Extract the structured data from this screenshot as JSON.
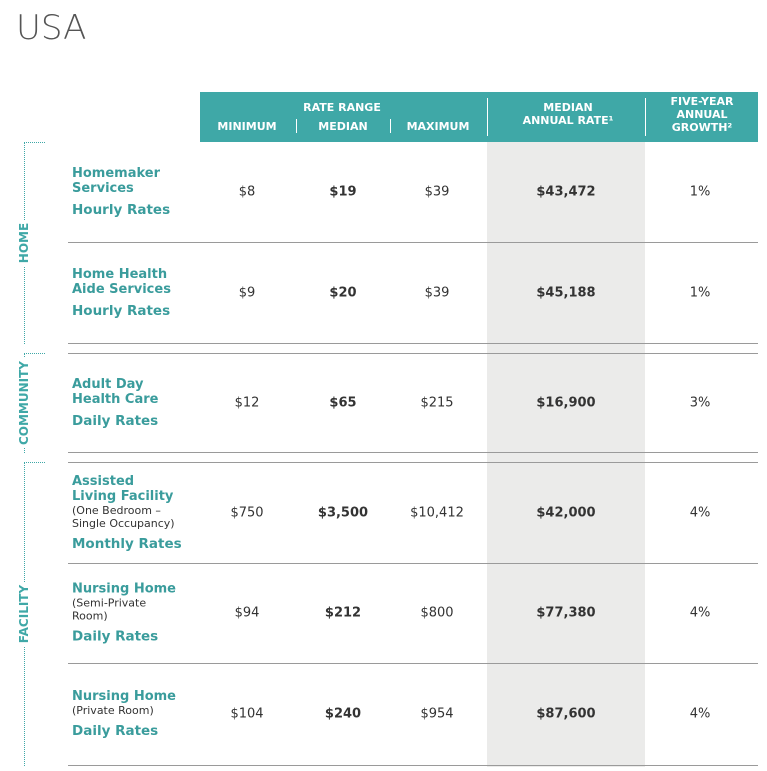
{
  "title": "USA",
  "header": {
    "rate_range": "RATE RANGE",
    "minimum": "MINIMUM",
    "median": "MEDIAN",
    "maximum": "MAXIMUM",
    "median_annual_rate": "MEDIAN ANNUAL RATE¹",
    "five_year_growth": "FIVE-YEAR ANNUAL GROWTH²"
  },
  "groups": [
    {
      "label": "HOME",
      "rows": [
        {
          "name": [
            "Homemaker",
            "Services"
          ],
          "note": [],
          "rate_type": "Hourly Rates",
          "values": [
            "$8",
            "$19",
            "$39",
            "$43,472",
            "1%"
          ]
        },
        {
          "name": [
            "Home Health",
            "Aide Services"
          ],
          "note": [],
          "rate_type": "Hourly Rates",
          "values": [
            "$9",
            "$20",
            "$39",
            "$45,188",
            "1%"
          ]
        }
      ]
    },
    {
      "label": "COMMUNITY",
      "rows": [
        {
          "name": [
            "Adult Day",
            "Health Care"
          ],
          "note": [],
          "rate_type": "Daily Rates",
          "values": [
            "$12",
            "$65",
            "$215",
            "$16,900",
            "3%"
          ]
        }
      ]
    },
    {
      "label": "FACILITY",
      "rows": [
        {
          "name": [
            "Assisted",
            "Living Facility"
          ],
          "note": [
            "(One Bedroom –",
            "Single Occupancy)"
          ],
          "rate_type": "Monthly Rates",
          "values": [
            "$750",
            "$3,500",
            "$10,412",
            "$42,000",
            "4%"
          ]
        },
        {
          "name": [
            "Nursing Home"
          ],
          "note": [
            "(Semi-Private",
            "Room)"
          ],
          "rate_type": "Daily Rates",
          "values": [
            "$94",
            "$212",
            "$800",
            "$77,380",
            "4%"
          ]
        },
        {
          "name": [
            "Nursing Home"
          ],
          "note": [
            "(Private Room)"
          ],
          "rate_type": "Daily Rates",
          "values": [
            "$104",
            "$240",
            "$954",
            "$87,600",
            "4%"
          ]
        }
      ]
    }
  ]
}
